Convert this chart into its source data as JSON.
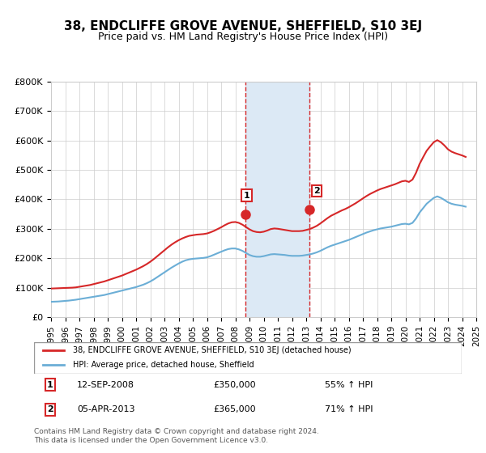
{
  "title": "38, ENDCLIFFE GROVE AVENUE, SHEFFIELD, S10 3EJ",
  "subtitle": "Price paid vs. HM Land Registry's House Price Index (HPI)",
  "ylabel": "",
  "ylim": [
    0,
    800000
  ],
  "yticks": [
    0,
    100000,
    200000,
    300000,
    400000,
    500000,
    600000,
    700000,
    800000
  ],
  "ytick_labels": [
    "£0",
    "£100K",
    "£200K",
    "£300K",
    "£400K",
    "£500K",
    "£600K",
    "£700K",
    "£800K"
  ],
  "hpi_color": "#6baed6",
  "price_color": "#d62728",
  "marker_color_1": "#d62728",
  "marker_color_2": "#d62728",
  "shaded_region_color": "#dce9f5",
  "grid_color": "#cccccc",
  "background_color": "#ffffff",
  "sale1_date": 2008.7,
  "sale1_price": 350000,
  "sale2_date": 2013.25,
  "sale2_price": 365000,
  "sale1_label": "1",
  "sale2_label": "2",
  "legend_line1": "38, ENDCLIFFE GROVE AVENUE, SHEFFIELD, S10 3EJ (detached house)",
  "legend_line2": "HPI: Average price, detached house, Sheffield",
  "annotation1": "1     12-SEP-2008          £350,000          55% ↑ HPI",
  "annotation2": "2     05-APR-2013          £365,000          71% ↑ HPI",
  "footer": "Contains HM Land Registry data © Crown copyright and database right 2024.\nThis data is licensed under the Open Government Licence v3.0.",
  "hpi_data_x": [
    1995.0,
    1995.25,
    1995.5,
    1995.75,
    1996.0,
    1996.25,
    1996.5,
    1996.75,
    1997.0,
    1997.25,
    1997.5,
    1997.75,
    1998.0,
    1998.25,
    1998.5,
    1998.75,
    1999.0,
    1999.25,
    1999.5,
    1999.75,
    2000.0,
    2000.25,
    2000.5,
    2000.75,
    2001.0,
    2001.25,
    2001.5,
    2001.75,
    2002.0,
    2002.25,
    2002.5,
    2002.75,
    2003.0,
    2003.25,
    2003.5,
    2003.75,
    2004.0,
    2004.25,
    2004.5,
    2004.75,
    2005.0,
    2005.25,
    2005.5,
    2005.75,
    2006.0,
    2006.25,
    2006.5,
    2006.75,
    2007.0,
    2007.25,
    2007.5,
    2007.75,
    2008.0,
    2008.25,
    2008.5,
    2008.75,
    2009.0,
    2009.25,
    2009.5,
    2009.75,
    2010.0,
    2010.25,
    2010.5,
    2010.75,
    2011.0,
    2011.25,
    2011.5,
    2011.75,
    2012.0,
    2012.25,
    2012.5,
    2012.75,
    2013.0,
    2013.25,
    2013.5,
    2013.75,
    2014.0,
    2014.25,
    2014.5,
    2014.75,
    2015.0,
    2015.25,
    2015.5,
    2015.75,
    2016.0,
    2016.25,
    2016.5,
    2016.75,
    2017.0,
    2017.25,
    2017.5,
    2017.75,
    2018.0,
    2018.25,
    2018.5,
    2018.75,
    2019.0,
    2019.25,
    2019.5,
    2019.75,
    2020.0,
    2020.25,
    2020.5,
    2020.75,
    2021.0,
    2021.25,
    2021.5,
    2021.75,
    2022.0,
    2022.25,
    2022.5,
    2022.75,
    2023.0,
    2023.25,
    2023.5,
    2023.75,
    2024.0,
    2024.25
  ],
  "hpi_data_y": [
    52000,
    52500,
    53000,
    54000,
    55000,
    56000,
    57500,
    59000,
    61000,
    63000,
    65000,
    67000,
    69000,
    71000,
    73000,
    75000,
    78000,
    81000,
    84000,
    87000,
    90000,
    93000,
    96000,
    99000,
    102000,
    106000,
    110000,
    115000,
    121000,
    128000,
    136000,
    144000,
    152000,
    160000,
    168000,
    175000,
    182000,
    188000,
    193000,
    196000,
    198000,
    199000,
    200000,
    201000,
    203000,
    207000,
    212000,
    217000,
    222000,
    227000,
    231000,
    233000,
    233000,
    230000,
    225000,
    218000,
    211000,
    207000,
    205000,
    205000,
    207000,
    210000,
    213000,
    214000,
    213000,
    212000,
    211000,
    209000,
    208000,
    208000,
    208000,
    209000,
    211000,
    213000,
    216000,
    220000,
    225000,
    231000,
    237000,
    242000,
    246000,
    250000,
    254000,
    258000,
    262000,
    267000,
    272000,
    277000,
    282000,
    287000,
    291000,
    295000,
    298000,
    301000,
    303000,
    305000,
    307000,
    310000,
    313000,
    316000,
    317000,
    315000,
    320000,
    335000,
    355000,
    370000,
    385000,
    395000,
    405000,
    410000,
    405000,
    398000,
    390000,
    385000,
    382000,
    380000,
    378000,
    375000
  ],
  "price_data_x": [
    1995.0,
    1995.25,
    1995.5,
    1995.75,
    1996.0,
    1996.25,
    1996.5,
    1996.75,
    1997.0,
    1997.25,
    1997.5,
    1997.75,
    1998.0,
    1998.25,
    1998.5,
    1998.75,
    1999.0,
    1999.25,
    1999.5,
    1999.75,
    2000.0,
    2000.25,
    2000.5,
    2000.75,
    2001.0,
    2001.25,
    2001.5,
    2001.75,
    2002.0,
    2002.25,
    2002.5,
    2002.75,
    2003.0,
    2003.25,
    2003.5,
    2003.75,
    2004.0,
    2004.25,
    2004.5,
    2004.75,
    2005.0,
    2005.25,
    2005.5,
    2005.75,
    2006.0,
    2006.25,
    2006.5,
    2006.75,
    2007.0,
    2007.25,
    2007.5,
    2007.75,
    2008.0,
    2008.25,
    2008.5,
    2008.75,
    2009.0,
    2009.25,
    2009.5,
    2009.75,
    2010.0,
    2010.25,
    2010.5,
    2010.75,
    2011.0,
    2011.25,
    2011.5,
    2011.75,
    2012.0,
    2012.25,
    2012.5,
    2012.75,
    2013.0,
    2013.25,
    2013.5,
    2013.75,
    2014.0,
    2014.25,
    2014.5,
    2014.75,
    2015.0,
    2015.25,
    2015.5,
    2015.75,
    2016.0,
    2016.25,
    2016.5,
    2016.75,
    2017.0,
    2017.25,
    2017.5,
    2017.75,
    2018.0,
    2018.25,
    2018.5,
    2018.75,
    2019.0,
    2019.25,
    2019.5,
    2019.75,
    2020.0,
    2020.25,
    2020.5,
    2020.75,
    2021.0,
    2021.25,
    2021.5,
    2021.75,
    2022.0,
    2022.25,
    2022.5,
    2022.75,
    2023.0,
    2023.25,
    2023.5,
    2023.75,
    2024.0,
    2024.25
  ],
  "price_data_y": [
    97000,
    97500,
    98000,
    98500,
    99000,
    99500,
    100000,
    101000,
    103000,
    105000,
    107000,
    109000,
    112000,
    115000,
    118000,
    121000,
    125000,
    129000,
    133000,
    137000,
    141000,
    146000,
    151000,
    156000,
    161000,
    167000,
    173000,
    180000,
    188000,
    197000,
    207000,
    217000,
    227000,
    237000,
    246000,
    254000,
    261000,
    267000,
    272000,
    276000,
    278000,
    280000,
    281000,
    282000,
    284000,
    288000,
    293000,
    299000,
    305000,
    312000,
    318000,
    322000,
    323000,
    320000,
    314000,
    306000,
    298000,
    292000,
    289000,
    288000,
    290000,
    294000,
    299000,
    301000,
    300000,
    298000,
    296000,
    294000,
    292000,
    292000,
    292000,
    293000,
    296000,
    299000,
    304000,
    310000,
    318000,
    327000,
    336000,
    344000,
    350000,
    356000,
    362000,
    367000,
    373000,
    380000,
    387000,
    395000,
    403000,
    411000,
    418000,
    424000,
    430000,
    435000,
    439000,
    443000,
    447000,
    451000,
    456000,
    461000,
    463000,
    459000,
    467000,
    490000,
    520000,
    543000,
    565000,
    580000,
    594000,
    601000,
    594000,
    583000,
    570000,
    562000,
    557000,
    553000,
    549000,
    544000
  ],
  "shaded_x_start": 2008.7,
  "shaded_x_end": 2013.25,
  "xtick_years": [
    1995,
    1996,
    1997,
    1998,
    1999,
    2000,
    2001,
    2002,
    2003,
    2004,
    2005,
    2006,
    2007,
    2008,
    2009,
    2010,
    2011,
    2012,
    2013,
    2014,
    2015,
    2016,
    2017,
    2018,
    2019,
    2020,
    2021,
    2022,
    2023,
    2024,
    2025
  ]
}
